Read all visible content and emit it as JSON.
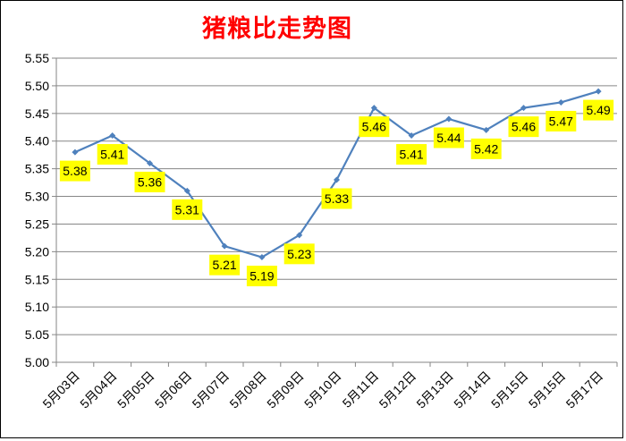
{
  "chart_data": {
    "type": "line",
    "title": "猪粮比走势图",
    "categories": [
      "5月03日",
      "5月04日",
      "5月05日",
      "5月06日",
      "5月07日",
      "5月08日",
      "5月09日",
      "5月10日",
      "5月11日",
      "5月12日",
      "5月13日",
      "5月14日",
      "5月15日",
      "5月15日",
      "5月17日"
    ],
    "values": [
      5.38,
      5.41,
      5.36,
      5.31,
      5.21,
      5.19,
      5.23,
      5.33,
      5.46,
      5.41,
      5.44,
      5.42,
      5.46,
      5.47,
      5.49
    ],
    "data_labels": [
      "5.38",
      "5.41",
      "5.36",
      "5.31",
      "5.21",
      "5.19",
      "5.23",
      "5.33",
      "5.46",
      "5.41",
      "5.44",
      "5.42",
      "5.46",
      "5.47",
      "5.49"
    ],
    "ylim": [
      5.0,
      5.55
    ],
    "yticks": [
      "5.00",
      "5.05",
      "5.10",
      "5.15",
      "5.20",
      "5.25",
      "5.30",
      "5.35",
      "5.40",
      "5.45",
      "5.50",
      "5.55"
    ],
    "xlabel": "",
    "ylabel": "",
    "grid": true,
    "legend": "none",
    "colors": {
      "line": "#4f81bd",
      "label_bg": "#ffff00",
      "grid": "#868686",
      "title": "#ff0000"
    }
  }
}
